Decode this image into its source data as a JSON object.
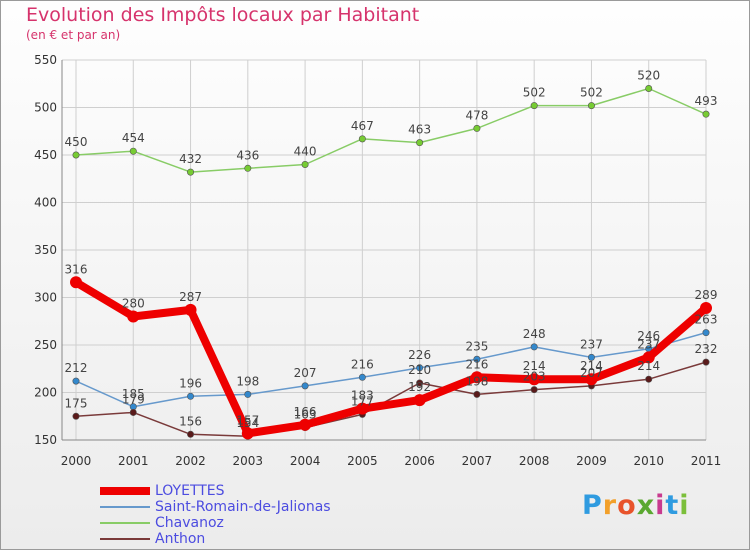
{
  "chart_data": {
    "type": "line",
    "title": "Evolution des Impôts locaux par Habitant",
    "subtitle": "(en € et par an)",
    "categories": [
      "2000",
      "2001",
      "2002",
      "2003",
      "2004",
      "2005",
      "2006",
      "2007",
      "2008",
      "2009",
      "2010",
      "2011"
    ],
    "ylim": [
      150,
      550
    ],
    "yticks": [
      150,
      200,
      250,
      300,
      350,
      400,
      450,
      500,
      550
    ],
    "grid": true,
    "legend_position": "bottom-left",
    "series": [
      {
        "name": "Chavanoz",
        "color": "#88cc66",
        "marker": "#77cc33",
        "values": [
          450,
          454,
          432,
          436,
          440,
          467,
          463,
          478,
          502,
          502,
          520,
          493
        ],
        "labels": [
          "450",
          "454",
          "432",
          "436",
          "440",
          "467",
          "463",
          "478",
          "502",
          "502",
          "520",
          "493"
        ]
      },
      {
        "name": "Saint-Romain-de-Jalionas",
        "color": "#6699cc",
        "marker": "#3388cc",
        "values": [
          212,
          185,
          196,
          198,
          207,
          216,
          226,
          235,
          248,
          237,
          246,
          263
        ],
        "labels": [
          "212",
          "185",
          "196",
          "198",
          "207",
          "216",
          "226",
          "235",
          "248",
          "237",
          "246",
          "263"
        ]
      },
      {
        "name": "Anthon",
        "color": "#7a3a3a",
        "marker": "#5a1a1a",
        "values": [
          175,
          179,
          156,
          154,
          163,
          177,
          210,
          198,
          203,
          207,
          214,
          232
        ],
        "labels": [
          "175",
          "179",
          "156",
          "154",
          "163",
          "177",
          "210",
          "198",
          "203",
          "207",
          "214",
          "232"
        ]
      },
      {
        "name": "LOYETTES",
        "color": "#ee0000",
        "marker": "#ee0000",
        "values": [
          316,
          280,
          287,
          157,
          166,
          183,
          192,
          216,
          214,
          214,
          237,
          289
        ],
        "labels": [
          "316",
          "280",
          "287",
          "157",
          "166",
          "183",
          "192",
          "216",
          "214",
          "214",
          "237",
          "289"
        ]
      }
    ],
    "legend_order": [
      "LOYETTES",
      "Saint-Romain-de-Jalionas",
      "Chavanoz",
      "Anthon"
    ]
  },
  "logo": {
    "letters": [
      "P",
      "r",
      "o",
      "x",
      "i",
      "t",
      "i"
    ],
    "colors": [
      "#2f9be0",
      "#f2a02a",
      "#e8532b",
      "#5aa830",
      "#c83a8f",
      "#2f9be0",
      "#7bbf3a"
    ]
  }
}
